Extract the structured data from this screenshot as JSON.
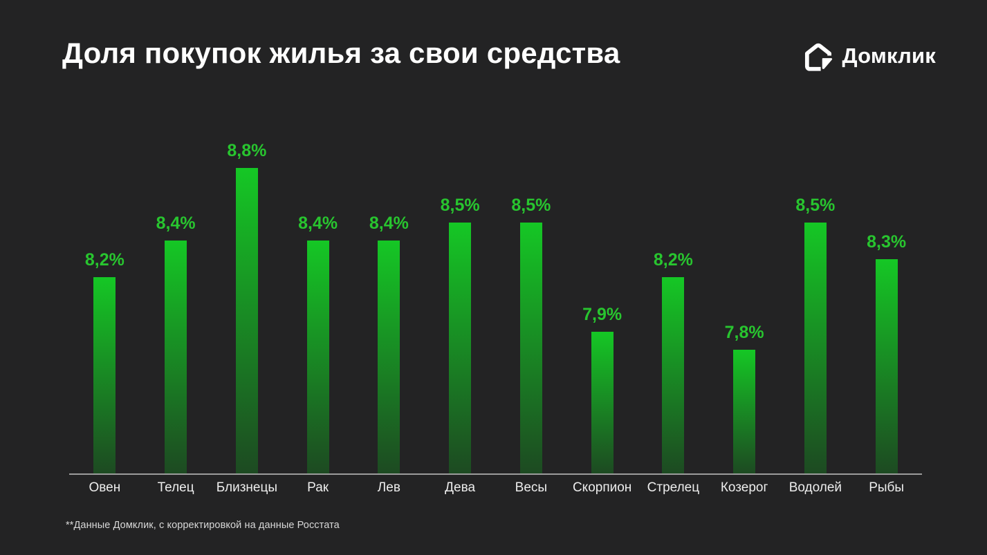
{
  "header": {
    "title": "Доля покупок жилья за свои средства"
  },
  "logo": {
    "text": "Домклик",
    "icon": "domclick-house-icon"
  },
  "chart_data": {
    "type": "bar",
    "title": "Доля покупок жилья за свои средства",
    "categories": [
      "Овен",
      "Телец",
      "Близнецы",
      "Рак",
      "Лев",
      "Дева",
      "Весы",
      "Скорпион",
      "Стрелец",
      "Козерог",
      "Водолей",
      "Рыбы"
    ],
    "values": [
      8.2,
      8.4,
      8.8,
      8.4,
      8.4,
      8.5,
      8.5,
      7.9,
      8.2,
      7.8,
      8.5,
      8.3
    ],
    "value_labels": [
      "8,2%",
      "8,4%",
      "8,8%",
      "8,4%",
      "8,4%",
      "8,5%",
      "8,5%",
      "7,9%",
      "8,2%",
      "7,8%",
      "8,5%",
      "8,3%"
    ],
    "xlabel": "",
    "ylabel": "",
    "ylim": [
      7.12,
      8.9
    ],
    "grid": false,
    "legend": false,
    "colors": {
      "background": "#232324",
      "bar_top": "#15C725",
      "bar_bottom": "#1D4A22",
      "value_label": "#28C52F",
      "axis_line": "#9C9C9C"
    }
  },
  "footnote": {
    "text": "**Данные Домклик, с корректировкой на данные Росстата"
  }
}
